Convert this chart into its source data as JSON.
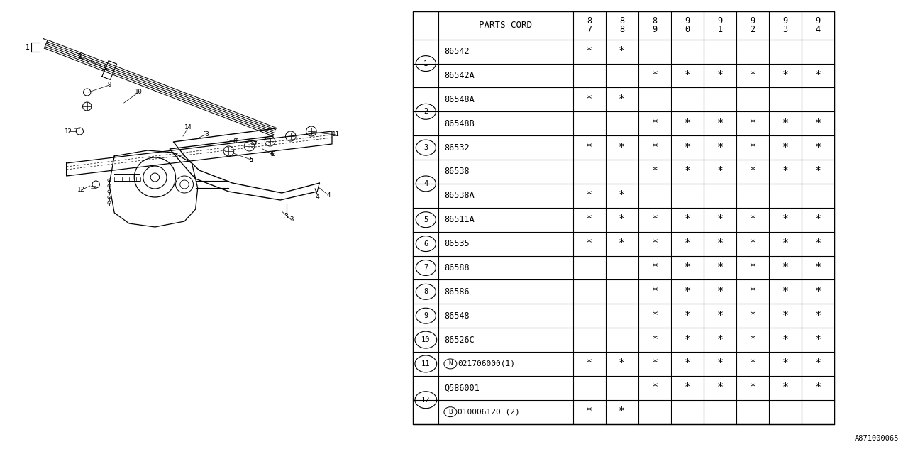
{
  "diagram_code": "A871000065",
  "table_col_header": "PARTS CORD",
  "year_top": [
    "8",
    "8",
    "8",
    "9",
    "9",
    "9",
    "9",
    "9"
  ],
  "year_bot": [
    "7",
    "8",
    "9",
    "0",
    "1",
    "2",
    "3",
    "4"
  ],
  "rows": [
    {
      "ref": "1",
      "part": "86542",
      "prefix": "",
      "marks": [
        1,
        1,
        0,
        0,
        0,
        0,
        0,
        0
      ],
      "group_start": true,
      "group_size": 2
    },
    {
      "ref": "",
      "part": "86542A",
      "prefix": "",
      "marks": [
        0,
        0,
        1,
        1,
        1,
        1,
        1,
        1
      ],
      "group_start": false,
      "group_size": 0
    },
    {
      "ref": "2",
      "part": "86548A",
      "prefix": "",
      "marks": [
        1,
        1,
        0,
        0,
        0,
        0,
        0,
        0
      ],
      "group_start": true,
      "group_size": 2
    },
    {
      "ref": "",
      "part": "86548B",
      "prefix": "",
      "marks": [
        0,
        0,
        1,
        1,
        1,
        1,
        1,
        1
      ],
      "group_start": false,
      "group_size": 0
    },
    {
      "ref": "3",
      "part": "86532",
      "prefix": "",
      "marks": [
        1,
        1,
        1,
        1,
        1,
        1,
        1,
        1
      ],
      "group_start": true,
      "group_size": 1
    },
    {
      "ref": "4",
      "part": "86538",
      "prefix": "",
      "marks": [
        0,
        0,
        1,
        1,
        1,
        1,
        1,
        1
      ],
      "group_start": true,
      "group_size": 2
    },
    {
      "ref": "",
      "part": "86538A",
      "prefix": "",
      "marks": [
        1,
        1,
        0,
        0,
        0,
        0,
        0,
        0
      ],
      "group_start": false,
      "group_size": 0
    },
    {
      "ref": "5",
      "part": "86511A",
      "prefix": "",
      "marks": [
        1,
        1,
        1,
        1,
        1,
        1,
        1,
        1
      ],
      "group_start": true,
      "group_size": 1
    },
    {
      "ref": "6",
      "part": "86535",
      "prefix": "",
      "marks": [
        1,
        1,
        1,
        1,
        1,
        1,
        1,
        1
      ],
      "group_start": true,
      "group_size": 1
    },
    {
      "ref": "7",
      "part": "86588",
      "prefix": "",
      "marks": [
        0,
        0,
        1,
        1,
        1,
        1,
        1,
        1
      ],
      "group_start": true,
      "group_size": 1
    },
    {
      "ref": "8",
      "part": "86586",
      "prefix": "",
      "marks": [
        0,
        0,
        1,
        1,
        1,
        1,
        1,
        1
      ],
      "group_start": true,
      "group_size": 1
    },
    {
      "ref": "9",
      "part": "86548",
      "prefix": "",
      "marks": [
        0,
        0,
        1,
        1,
        1,
        1,
        1,
        1
      ],
      "group_start": true,
      "group_size": 1
    },
    {
      "ref": "10",
      "part": "86526C",
      "prefix": "",
      "marks": [
        0,
        0,
        1,
        1,
        1,
        1,
        1,
        1
      ],
      "group_start": true,
      "group_size": 1
    },
    {
      "ref": "11",
      "part": "021706000(1)",
      "prefix": "N",
      "marks": [
        1,
        1,
        1,
        1,
        1,
        1,
        1,
        1
      ],
      "group_start": true,
      "group_size": 1
    },
    {
      "ref": "12",
      "part": "Q586001",
      "prefix": "",
      "marks": [
        0,
        0,
        1,
        1,
        1,
        1,
        1,
        1
      ],
      "group_start": true,
      "group_size": 2
    },
    {
      "ref": "",
      "part": "010006120 (2)",
      "prefix": "B",
      "marks": [
        1,
        1,
        0,
        0,
        0,
        0,
        0,
        0
      ],
      "group_start": false,
      "group_size": 0
    }
  ],
  "bg_color": "#ffffff",
  "line_color": "#000000"
}
